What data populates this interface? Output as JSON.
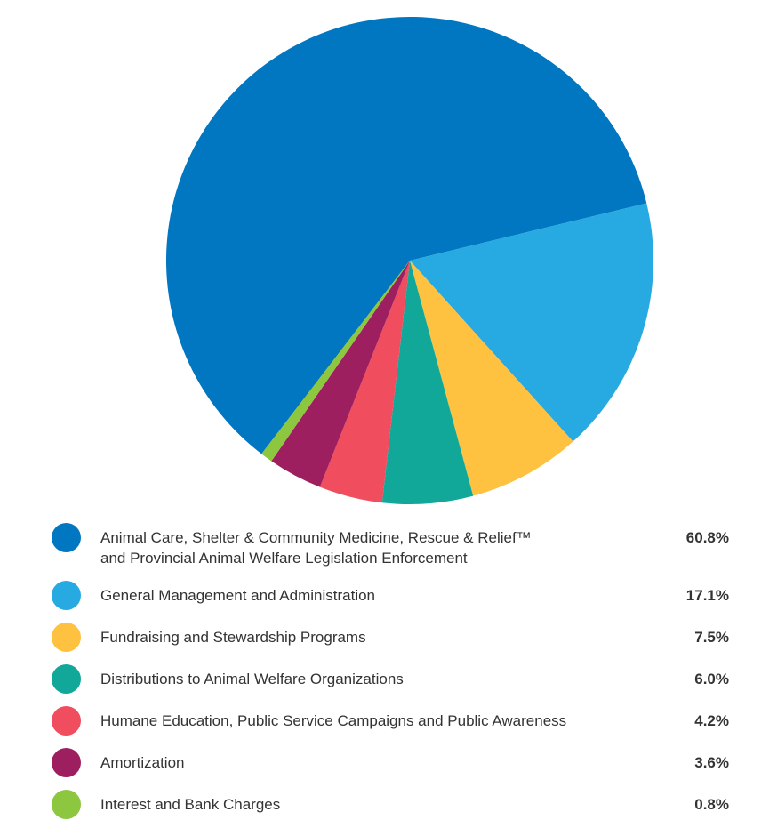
{
  "chart_data": {
    "type": "pie",
    "title": "",
    "legend_position": "bottom",
    "slices": [
      {
        "label": "Animal Care, Shelter & Community Medicine, Rescue & Relief™",
        "label_line2": "and Provincial Animal Welfare Legislation Enforcement",
        "value": 60.8,
        "value_label": "60.8%",
        "color": "#0077c0"
      },
      {
        "label": "General Management and Administration",
        "value": 17.1,
        "value_label": "17.1%",
        "color": "#27a9e1"
      },
      {
        "label": "Fundraising and Stewardship Programs",
        "value": 7.5,
        "value_label": "7.5%",
        "color": "#fec140"
      },
      {
        "label": "Distributions to Animal Welfare Organizations",
        "value": 6.0,
        "value_label": "6.0%",
        "color": "#11a89a"
      },
      {
        "label": "Humane Education, Public Service Campaigns and Public Awareness",
        "value": 4.2,
        "value_label": "4.2%",
        "color": "#f04d5f"
      },
      {
        "label": "Amortization",
        "value": 3.6,
        "value_label": "3.6%",
        "color": "#9d1f5f"
      },
      {
        "label": "Interest and Bank Charges",
        "value": 0.8,
        "value_label": "0.8%",
        "color": "#8dc63f"
      }
    ]
  }
}
